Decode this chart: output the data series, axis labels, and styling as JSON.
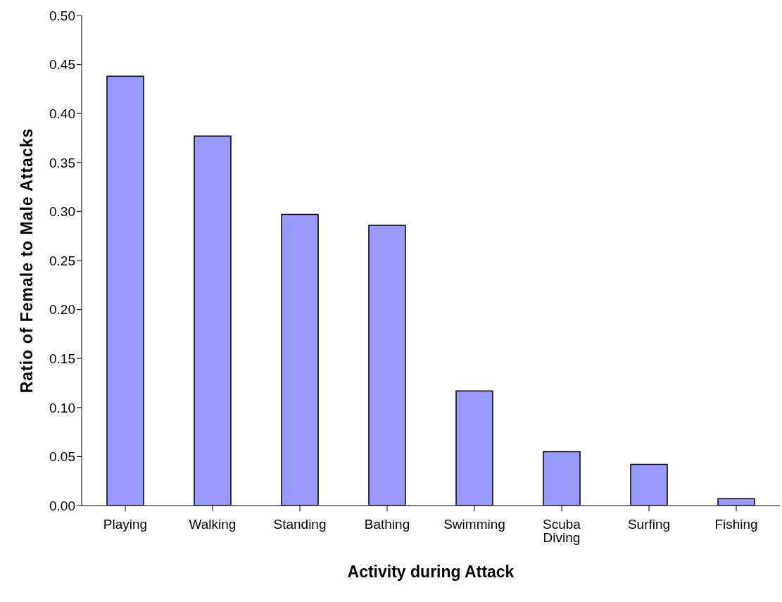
{
  "chart_data": {
    "type": "bar",
    "xlabel": "Activity during Attack",
    "ylabel": "Ratio of Female to Male Attacks",
    "categories": [
      "Playing",
      "Walking",
      "Standing",
      "Bathing",
      "Swimming",
      "Scuba Diving",
      "Surfing",
      "Fishing"
    ],
    "values": [
      0.438,
      0.377,
      0.297,
      0.286,
      0.117,
      0.055,
      0.042,
      0.007
    ],
    "color": "#9999ff",
    "ylim": [
      0,
      0.5
    ],
    "yticks": [
      {
        "value": 0,
        "label": "0.00"
      },
      {
        "value": 0.05,
        "label": "0.05"
      },
      {
        "value": 0.1,
        "label": "0.10"
      },
      {
        "value": 0.15,
        "label": "0.15"
      },
      {
        "value": 0.2,
        "label": "0.20"
      },
      {
        "value": 0.25,
        "label": "0.25"
      },
      {
        "value": 0.3,
        "label": "0.30"
      },
      {
        "value": 0.35,
        "label": "0.35"
      },
      {
        "value": 0.4,
        "label": "0.40"
      },
      {
        "value": 0.45,
        "label": "0.45"
      },
      {
        "value": 0.5,
        "label": "0.50"
      }
    ],
    "grid": false,
    "legend": false
  }
}
